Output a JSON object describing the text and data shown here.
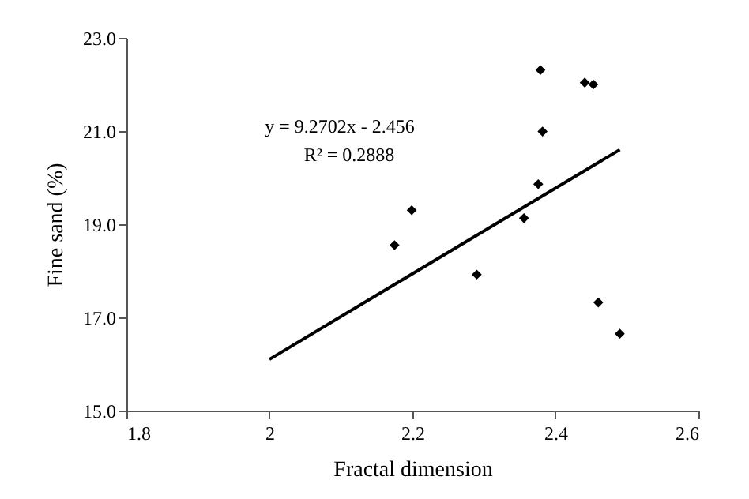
{
  "chart_data": {
    "type": "scatter",
    "xlabel": "Fractal dimension",
    "ylabel": "Fine sand (%)",
    "annotations": [
      "y = 9.2702x - 2.456",
      "R² = 0.2888"
    ],
    "xlim": [
      1.8,
      2.6
    ],
    "xticks": [
      1.8,
      {
        "value": 2,
        "label": "2"
      },
      2.2,
      2.4,
      2.6
    ],
    "ylim": [
      15,
      23
    ],
    "yticks": [
      {
        "value": 15,
        "label": "15.0"
      },
      {
        "value": 17,
        "label": "17.0"
      },
      {
        "value": 19,
        "label": "19.0"
      },
      {
        "value": 21,
        "label": "21.0"
      },
      {
        "value": 23,
        "label": "23.0"
      }
    ],
    "grid": false,
    "marker": "diamond",
    "series": [
      {
        "color": "#000000",
        "x": [
          2.175,
          2.199,
          2.29,
          2.356,
          2.376,
          2.379,
          2.382,
          2.441,
          2.453,
          2.46,
          2.49
        ],
        "values": [
          18.55,
          19.3,
          17.92,
          19.13,
          19.86,
          22.31,
          20.99,
          22.04,
          22.0,
          17.32,
          16.65
        ]
      },
      {
        "type": "line",
        "color": "#000000",
        "marker": "none",
        "line_style": "solid",
        "x": [
          2.0,
          2.49
        ],
        "values": [
          16.1,
          20.6
        ]
      }
    ]
  }
}
